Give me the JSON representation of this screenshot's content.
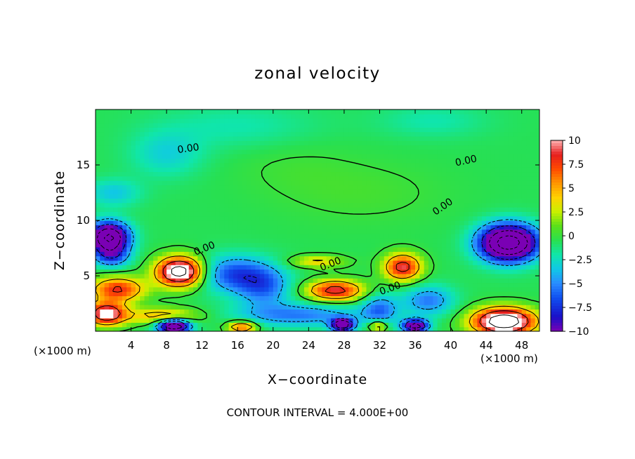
{
  "chart_data": {
    "type": "heatmap",
    "title": "zonal velocity",
    "xlabel": "X−coordinate",
    "ylabel": "Z−coordinate",
    "x_unit_left": "(×1000 m)",
    "x_unit_right": "(×1000 m)",
    "xlim": [
      0,
      50
    ],
    "ylim": [
      0,
      20
    ],
    "xticks": [
      4,
      8,
      12,
      16,
      20,
      24,
      28,
      32,
      36,
      40,
      44,
      48
    ],
    "yticks": [
      5,
      10,
      15
    ],
    "footer": "CONTOUR INTERVAL = 4.000E+00",
    "contour_label": "0.00",
    "colorbar": {
      "range": [
        -10,
        10
      ],
      "ticks": [
        10,
        7.5,
        5,
        2.5,
        0,
        -2.5,
        -5,
        -7.5,
        -10
      ],
      "tick_labels": [
        "10",
        "7.5",
        "5",
        "2.5",
        "0",
        "−2.5",
        "−5",
        "−7.5",
        "−10"
      ],
      "stops": [
        {
          "v": -10,
          "c": "#7a00b4"
        },
        {
          "v": -8.5,
          "c": "#1a10c8"
        },
        {
          "v": -6.5,
          "c": "#1050f0"
        },
        {
          "v": -5,
          "c": "#2a8cff"
        },
        {
          "v": -3.5,
          "c": "#10c8e6"
        },
        {
          "v": -2,
          "c": "#10e6aa"
        },
        {
          "v": -0.5,
          "c": "#28e050"
        },
        {
          "v": 1,
          "c": "#5ae01a"
        },
        {
          "v": 2.5,
          "c": "#c8f000"
        },
        {
          "v": 4,
          "c": "#ffd200"
        },
        {
          "v": 5.5,
          "c": "#ff9600"
        },
        {
          "v": 7,
          "c": "#ff4b00"
        },
        {
          "v": 8.5,
          "c": "#e61e1e"
        },
        {
          "v": 10,
          "c": "#ffb4b4"
        }
      ]
    },
    "field_features": [
      {
        "x": 1.5,
        "z": 8.5,
        "sx": 2.2,
        "sz": 1.3,
        "amp": -16
      },
      {
        "x": 1.8,
        "z": 6.8,
        "sx": 2.0,
        "sz": 1.0,
        "amp": -6
      },
      {
        "x": 9.5,
        "z": 5.4,
        "sx": 2.6,
        "sz": 1.3,
        "amp": 15
      },
      {
        "x": 2.5,
        "z": 3.8,
        "sx": 3.0,
        "sz": 1.1,
        "amp": 9
      },
      {
        "x": 1.2,
        "z": 1.6,
        "sx": 2.2,
        "sz": 1.0,
        "amp": 12
      },
      {
        "x": 7.5,
        "z": 1.4,
        "sx": 4.0,
        "sz": 0.7,
        "amp": 6
      },
      {
        "x": 8.8,
        "z": 0.5,
        "sx": 1.8,
        "sz": 0.6,
        "amp": -16
      },
      {
        "x": 15.5,
        "z": 5.2,
        "sx": 4.0,
        "sz": 1.6,
        "amp": -6
      },
      {
        "x": 19.0,
        "z": 4.0,
        "sx": 3.0,
        "sz": 1.8,
        "amp": -5
      },
      {
        "x": 27.0,
        "z": 3.7,
        "sx": 3.2,
        "sz": 0.9,
        "amp": 10
      },
      {
        "x": 25.0,
        "z": 6.3,
        "sx": 3.0,
        "sz": 0.5,
        "amp": 5
      },
      {
        "x": 34.6,
        "z": 5.8,
        "sx": 2.1,
        "sz": 1.2,
        "amp": 10
      },
      {
        "x": 23.0,
        "z": 1.5,
        "sx": 7.0,
        "sz": 1.0,
        "amp": -5
      },
      {
        "x": 32.0,
        "z": 2.0,
        "sx": 2.0,
        "sz": 1.4,
        "amp": -5
      },
      {
        "x": 37.5,
        "z": 2.8,
        "sx": 2.8,
        "sz": 1.3,
        "amp": -5
      },
      {
        "x": 16.5,
        "z": 0.4,
        "sx": 1.6,
        "sz": 0.5,
        "amp": 9
      },
      {
        "x": 27.8,
        "z": 0.6,
        "sx": 1.2,
        "sz": 0.5,
        "amp": -16
      },
      {
        "x": 31.8,
        "z": 0.5,
        "sx": 1.0,
        "sz": 0.45,
        "amp": 7
      },
      {
        "x": 36.0,
        "z": 0.5,
        "sx": 1.4,
        "sz": 0.55,
        "amp": -14
      },
      {
        "x": 46.5,
        "z": 8.0,
        "sx": 3.2,
        "sz": 1.6,
        "amp": -18
      },
      {
        "x": 46.0,
        "z": 0.9,
        "sx": 3.5,
        "sz": 1.2,
        "amp": 16
      },
      {
        "x": 16.0,
        "z": 18.5,
        "sx": 9.0,
        "sz": 2.0,
        "amp": -1.5
      },
      {
        "x": 38.0,
        "z": 19.0,
        "sx": 6.0,
        "sz": 1.5,
        "amp": -1.5
      },
      {
        "x": 8.0,
        "z": 16.0,
        "sx": 4.0,
        "sz": 2.0,
        "amp": -2.5
      },
      {
        "x": 2.0,
        "z": 12.5,
        "sx": 3.0,
        "sz": 1.2,
        "amp": -3
      },
      {
        "x": 30.0,
        "z": 12.5,
        "sx": 10.0,
        "sz": 3.0,
        "amp": 0.9
      },
      {
        "x": 22.0,
        "z": 15.0,
        "sx": 7.0,
        "sz": 2.5,
        "amp": 0.6
      }
    ],
    "field_base": -0.6
  }
}
